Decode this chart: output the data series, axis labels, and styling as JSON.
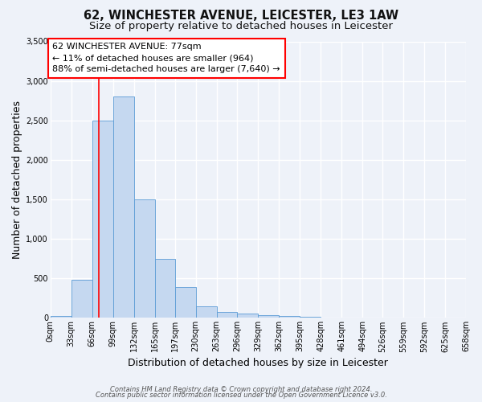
{
  "title": "62, WINCHESTER AVENUE, LEICESTER, LE3 1AW",
  "subtitle": "Size of property relative to detached houses in Leicester",
  "xlabel": "Distribution of detached houses by size in Leicester",
  "ylabel": "Number of detached properties",
  "bin_edges": [
    0,
    33,
    66,
    99,
    132,
    165,
    197,
    230,
    263,
    296,
    329,
    362,
    395,
    428,
    461,
    494,
    526,
    559,
    592,
    625,
    658
  ],
  "bin_labels": [
    "0sqm",
    "33sqm",
    "66sqm",
    "99sqm",
    "132sqm",
    "165sqm",
    "197sqm",
    "230sqm",
    "263sqm",
    "296sqm",
    "329sqm",
    "362sqm",
    "395sqm",
    "428sqm",
    "461sqm",
    "494sqm",
    "526sqm",
    "559sqm",
    "592sqm",
    "625sqm",
    "658sqm"
  ],
  "bar_heights": [
    20,
    480,
    2500,
    2800,
    1500,
    750,
    390,
    150,
    80,
    55,
    30,
    20,
    10,
    0,
    0,
    0,
    0,
    0,
    0,
    0
  ],
  "bar_color": "#c5d8f0",
  "bar_edge_color": "#5b9bd5",
  "property_line_x": 77,
  "property_line_color": "red",
  "ylim": [
    0,
    3500
  ],
  "yticks": [
    0,
    500,
    1000,
    1500,
    2000,
    2500,
    3000,
    3500
  ],
  "annotation_line1": "62 WINCHESTER AVENUE: 77sqm",
  "annotation_line2": "← 11% of detached houses are smaller (964)",
  "annotation_line3": "88% of semi-detached houses are larger (7,640) →",
  "footer_line1": "Contains HM Land Registry data © Crown copyright and database right 2024.",
  "footer_line2": "Contains public sector information licensed under the Open Government Licence v3.0.",
  "bg_color": "#eef2f9",
  "plot_bg_color": "#eef2f9",
  "grid_color": "#ffffff",
  "title_fontsize": 10.5,
  "subtitle_fontsize": 9.5,
  "axis_label_fontsize": 9,
  "tick_fontsize": 7,
  "annotation_fontsize": 8,
  "footer_fontsize": 6
}
